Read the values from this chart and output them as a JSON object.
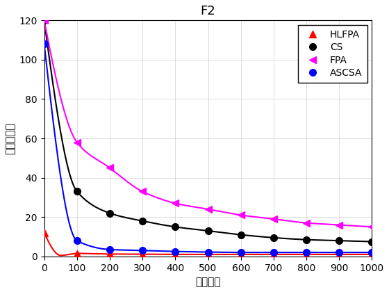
{
  "title": "F2",
  "xlabel": "迭代次数",
  "ylabel": "当前最优值",
  "xlim": [
    0,
    1000
  ],
  "ylim": [
    0,
    120
  ],
  "yticks": [
    0,
    20,
    40,
    60,
    80,
    100,
    120
  ],
  "xticks": [
    0,
    100,
    200,
    300,
    400,
    500,
    600,
    700,
    800,
    900,
    1000
  ],
  "series": {
    "HLFPA": {
      "color": "#ff0000",
      "marker": "^",
      "markersize": 7,
      "linewidth": 1.5,
      "x": [
        0,
        50,
        100,
        200,
        300,
        400,
        500,
        600,
        700,
        800,
        900,
        1000
      ],
      "y": [
        12,
        0.5,
        1.5,
        1.2,
        1.1,
        1.0,
        1.0,
        1.0,
        1.0,
        1.0,
        1.0,
        1.0
      ]
    },
    "CS": {
      "color": "#000000",
      "marker": "o",
      "markersize": 7,
      "linewidth": 1.5,
      "x": [
        0,
        100,
        200,
        300,
        400,
        500,
        600,
        700,
        800,
        900,
        1000
      ],
      "y": [
        120,
        33,
        22,
        18,
        15,
        13,
        11,
        9.5,
        8.5,
        8.0,
        7.5
      ]
    },
    "FPA": {
      "color": "#ff00ff",
      "marker": "<",
      "markersize": 7,
      "linewidth": 1.5,
      "x": [
        0,
        100,
        200,
        300,
        400,
        500,
        600,
        700,
        800,
        900,
        1000
      ],
      "y": [
        120,
        58,
        45,
        33,
        27,
        24,
        21,
        19,
        17,
        16,
        15
      ]
    },
    "ASCSA": {
      "color": "#0000ff",
      "marker": "o",
      "markersize": 7,
      "linewidth": 1.5,
      "x": [
        0,
        100,
        200,
        300,
        400,
        500,
        600,
        700,
        800,
        900,
        1000
      ],
      "y": [
        108,
        8,
        3.5,
        3.0,
        2.5,
        2.2,
        2.0,
        2.0,
        2.0,
        2.0,
        2.0
      ]
    }
  },
  "legend_order": [
    "HLFPA",
    "CS",
    "FPA",
    "ASCSA"
  ],
  "background_color": "#ffffff",
  "grid": true,
  "title_fontsize": 13,
  "label_fontsize": 11,
  "tick_fontsize": 10,
  "legend_fontsize": 10
}
